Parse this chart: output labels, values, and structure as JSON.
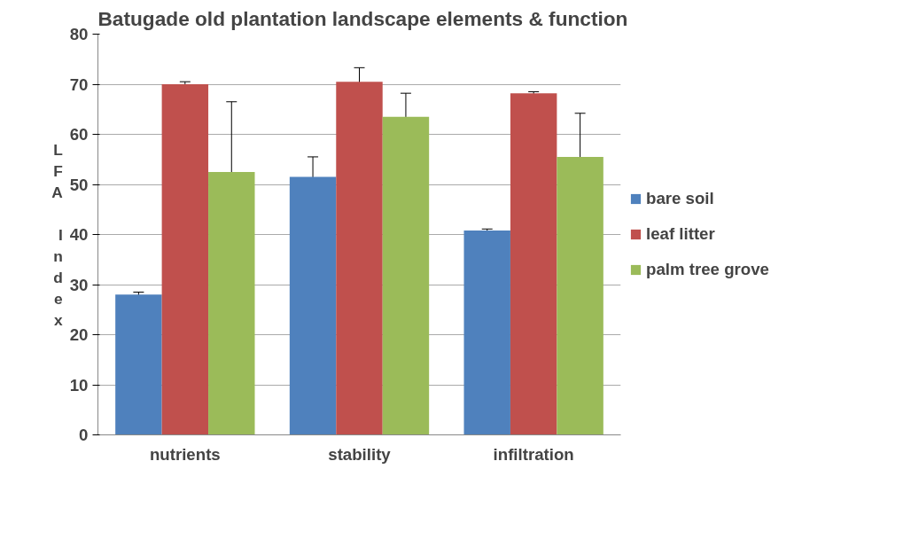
{
  "chart_data": {
    "type": "bar",
    "title": "Batugade old plantation landscape elements & function",
    "ylabel": "LFA Index",
    "categories": [
      "nutrients",
      "stability",
      "infiltration"
    ],
    "series": [
      {
        "name": "bare soil",
        "color": "#4f81bd",
        "values": [
          28,
          51.5,
          40.8
        ],
        "errors": [
          0.5,
          4,
          0.3
        ]
      },
      {
        "name": "leaf litter",
        "color": "#c0504d",
        "values": [
          70,
          70.5,
          68.2
        ],
        "errors": [
          0.5,
          2.8,
          0.3
        ]
      },
      {
        "name": "palm tree grove",
        "color": "#9bbb59",
        "values": [
          52.5,
          63.5,
          55.5
        ],
        "errors": [
          14,
          4.7,
          8.7
        ]
      }
    ],
    "ylim": [
      0,
      80
    ],
    "yticks": [
      0,
      10,
      20,
      30,
      40,
      50,
      60,
      70,
      80
    ],
    "grid": "y",
    "legend": "right"
  }
}
